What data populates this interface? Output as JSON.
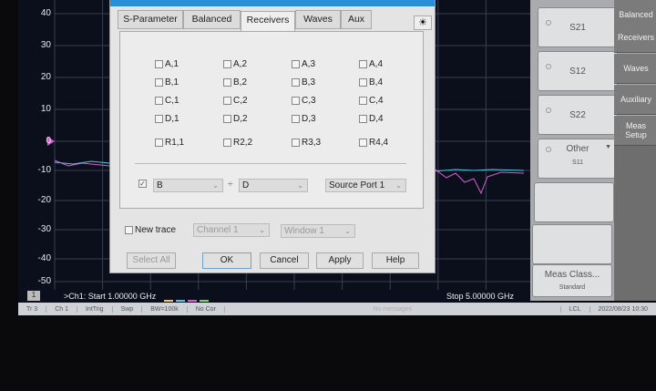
{
  "plot": {
    "y_ticks": [
      "40",
      "30",
      "20",
      "10",
      "0",
      "-10",
      "-20",
      "-30",
      "-40",
      "-50"
    ],
    "trace_colors": [
      "#e9c85a",
      "#4fc6e0",
      "#d35fd0",
      "#7fd36a"
    ]
  },
  "channel_bar": {
    "window_number": "1",
    "start": ">Ch1: Start  1.00000 GHz",
    "stop": "Stop  5.00000 GHz"
  },
  "status_bar": {
    "items": [
      "Tr 3",
      "Ch 1",
      "IntTrig",
      "Swp",
      "BW=100k",
      "No Cor"
    ],
    "message": "No messages",
    "mode": "LCL",
    "datetime": "2022/08/23 10:30"
  },
  "dialog": {
    "tabs": [
      "S-Parameter",
      "Balanced",
      "Receivers",
      "Waves",
      "Aux"
    ],
    "active_tab": "Receivers",
    "receivers": [
      [
        "A,1",
        "A,2",
        "A,3",
        "A,4"
      ],
      [
        "B,1",
        "B,2",
        "B,3",
        "B,4"
      ],
      [
        "C,1",
        "C,2",
        "C,3",
        "C,4"
      ],
      [
        "D,1",
        "D,2",
        "D,3",
        "D,4"
      ],
      [
        "R1,1",
        "R2,2",
        "R3,3",
        "R4,4"
      ]
    ],
    "ratio": {
      "checked": true,
      "numerator": "B",
      "operator": "÷",
      "denominator": "D",
      "source": "Source Port 1"
    },
    "new_trace": {
      "label": "New trace",
      "checked": false,
      "channel": "Channel 1",
      "window": "Window 1"
    },
    "buttons": {
      "select_all": "Select All",
      "ok": "OK",
      "cancel": "Cancel",
      "apply": "Apply",
      "help": "Help"
    }
  },
  "softkeys": {
    "buttons": [
      {
        "label": "S21"
      },
      {
        "label": "S12"
      },
      {
        "label": "S22"
      },
      {
        "label": "Other",
        "sub": "S11"
      }
    ],
    "meas_class": "Meas Class...",
    "meas_class_sub": "Standard"
  },
  "side_tabs": [
    "Balanced",
    "Receivers",
    "Waves",
    "Auxiliary",
    "Meas Setup"
  ]
}
